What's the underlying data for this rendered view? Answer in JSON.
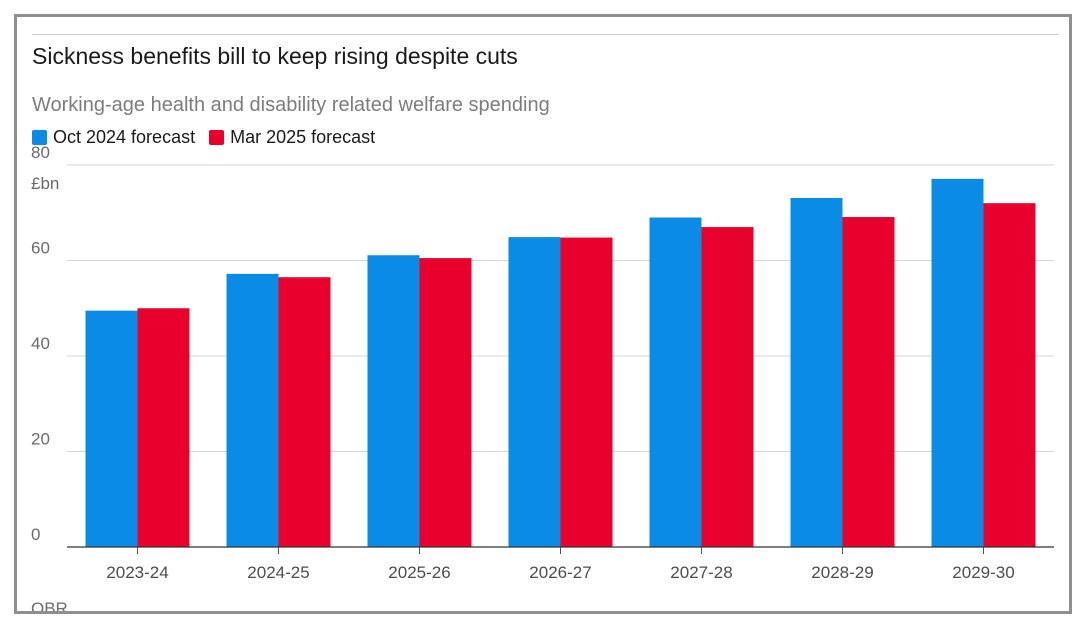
{
  "chart_data": {
    "type": "bar",
    "title": "Sickness benefits bill to keep rising despite cuts",
    "subtitle": "Working-age health and disability related welfare spending",
    "ylabel": "£bn",
    "ylim": [
      0,
      80
    ],
    "yticks": [
      0,
      20,
      40,
      60,
      80
    ],
    "grid": true,
    "legend_position": "top-left",
    "categories": [
      "2023-24",
      "2024-25",
      "2025-26",
      "2026-27",
      "2027-28",
      "2028-29",
      "2029-30"
    ],
    "series": [
      {
        "name": "Oct 2024 forecast",
        "color": "#0a8be6",
        "values": [
          49.5,
          57.2,
          61.1,
          64.9,
          69.0,
          73.1,
          77.1
        ]
      },
      {
        "name": "Mar 2025 forecast",
        "color": "#e8012d",
        "values": [
          50.0,
          56.5,
          60.5,
          64.8,
          67.0,
          69.1,
          72.0
        ]
      }
    ],
    "source": "OBR"
  }
}
